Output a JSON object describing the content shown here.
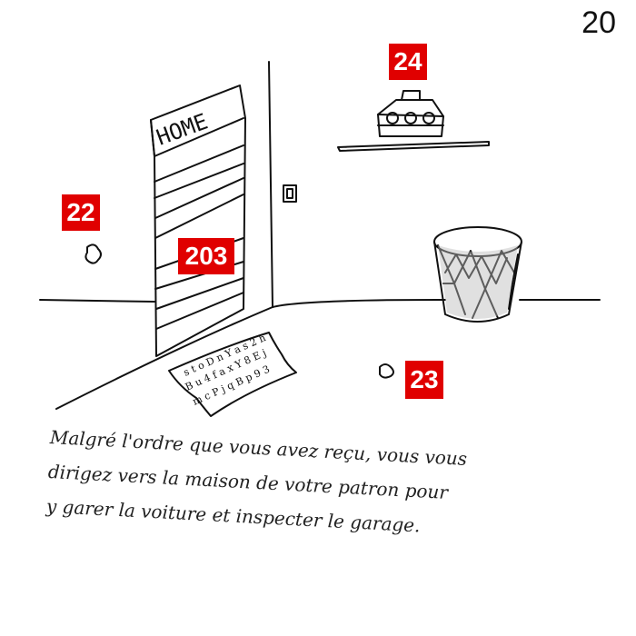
{
  "page_number": "20",
  "door_sign": "HOME",
  "markers": {
    "marker_22": "22",
    "marker_23": "23",
    "marker_24": "24",
    "marker_203": "203"
  },
  "caption": "Malgré l'ordre que vous avez reçu, vous vous\ndirigez vers la maison de votre patron pour\ny garer la voiture et inspecter le garage.",
  "colors": {
    "marker_bg": "#e00000",
    "marker_text": "#ffffff",
    "ink": "#222222"
  }
}
